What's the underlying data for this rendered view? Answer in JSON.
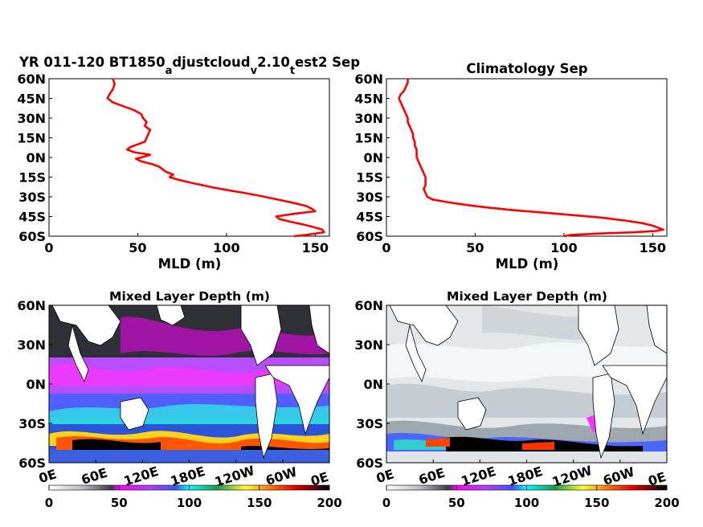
{
  "figure": {
    "colorbar_ticks": [
      "0",
      "50",
      "100",
      "150",
      "200"
    ]
  },
  "chart_data": [
    {
      "type": "line",
      "title": "YR 011-120 BT1850",
      "title_parts": [
        "YR 011-120 BT1850",
        "a",
        "djustcloud",
        "v",
        "2.10",
        "t",
        "est2 Sep"
      ],
      "xlabel": "MLD (m)",
      "xlim": [
        0,
        158
      ],
      "xticks": [
        "0",
        "50",
        "100",
        "150"
      ],
      "yticks": [
        "60N",
        "45N",
        "30N",
        "15N",
        "0N",
        "15S",
        "30S",
        "45S",
        "60S"
      ],
      "ylim": [
        -60,
        60
      ],
      "series_color": "#ff0000",
      "series": [
        {
          "lat": [
            60,
            56,
            52,
            48,
            45,
            42,
            39,
            36,
            33,
            30,
            27,
            24,
            21,
            18,
            15,
            12,
            10,
            8,
            6,
            4,
            2,
            0,
            -1,
            -3,
            -5,
            -7,
            -9,
            -11,
            -13,
            -15,
            -17,
            -19,
            -21,
            -23,
            -25,
            -27,
            -29,
            -31,
            -33,
            -35,
            -37,
            -39,
            -41,
            -43,
            -45,
            -47,
            -49,
            -51,
            -53,
            -55,
            -57,
            -59,
            -60
          ],
          "mld": [
            36,
            37,
            36,
            34,
            33,
            36,
            42,
            48,
            52,
            53,
            55,
            54,
            57,
            56,
            55,
            54,
            50,
            46,
            44,
            48,
            57,
            52,
            49,
            52,
            58,
            62,
            64,
            66,
            70,
            68,
            73,
            79,
            86,
            93,
            101,
            110,
            118,
            125,
            132,
            139,
            145,
            148,
            150,
            138,
            128,
            130,
            136,
            143,
            149,
            154,
            155,
            145,
            138
          ]
        }
      ]
    },
    {
      "type": "line",
      "title": "Climatology Sep",
      "xlabel": "MLD (m)",
      "xlim": [
        0,
        158
      ],
      "xticks": [
        "0",
        "50",
        "100",
        "150"
      ],
      "yticks": [
        "60N",
        "45N",
        "30N",
        "15N",
        "0N",
        "15S",
        "30S",
        "45S",
        "60S"
      ],
      "ylim": [
        -60,
        60
      ],
      "series_color": "#ff0000",
      "series": [
        {
          "lat": [
            60,
            57,
            54,
            51,
            48,
            45,
            42,
            39,
            36,
            33,
            30,
            27,
            24,
            21,
            18,
            15,
            12,
            9,
            6,
            3,
            0,
            -3,
            -6,
            -9,
            -12,
            -15,
            -18,
            -21,
            -24,
            -27,
            -30,
            -32,
            -34,
            -36,
            -38,
            -40,
            -42,
            -44,
            -46,
            -48,
            -50,
            -52,
            -54,
            -55,
            -56,
            -57,
            -58,
            -59,
            -60
          ],
          "mld": [
            12,
            12,
            11,
            10,
            8,
            7,
            8,
            9,
            10,
            11,
            12,
            12,
            13,
            14,
            15,
            15,
            16,
            16,
            17,
            17,
            17,
            18,
            19,
            20,
            21,
            22,
            22,
            22,
            21,
            22,
            23,
            26,
            34,
            44,
            56,
            70,
            88,
            106,
            122,
            134,
            144,
            150,
            154,
            156,
            152,
            140,
            120,
            104,
            100
          ]
        }
      ]
    },
    {
      "type": "heatmap",
      "title": "Mixed Layer Depth (m)",
      "xticks": [
        "0E",
        "60E",
        "120E",
        "180E",
        "120W",
        "60W",
        "0E"
      ],
      "yticks": [
        "60N",
        "30N",
        "0N",
        "30S",
        "60S"
      ],
      "color_range": [
        0,
        200
      ]
    },
    {
      "type": "heatmap",
      "title": "Mixed Layer Depth (m)",
      "xticks": [
        "0E",
        "60E",
        "120E",
        "180E",
        "120W",
        "60W",
        "0E"
      ],
      "yticks": [
        "60N",
        "30N",
        "0N",
        "30S",
        "60S"
      ],
      "color_range": [
        0,
        200
      ]
    }
  ]
}
